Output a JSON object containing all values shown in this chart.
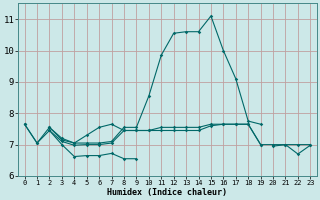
{
  "xlabel": "Humidex (Indice chaleur)",
  "bg_color": "#cce8e8",
  "grid_color": "#c0a0a0",
  "line_color": "#006868",
  "xmin": -0.5,
  "xmax": 23.5,
  "ymin": 6.0,
  "ymax": 11.5,
  "yticks": [
    6,
    7,
    8,
    9,
    10,
    11
  ],
  "xticks": [
    0,
    1,
    2,
    3,
    4,
    5,
    6,
    7,
    8,
    9,
    10,
    11,
    12,
    13,
    14,
    15,
    16,
    17,
    18,
    19,
    20,
    21,
    22,
    23
  ],
  "series": [
    [
      7.65,
      7.05,
      7.45,
      7.0,
      6.62,
      6.65,
      6.65,
      6.72,
      6.55,
      6.55,
      null,
      null,
      null,
      null,
      null,
      null,
      null,
      null,
      null,
      null,
      null,
      null,
      null,
      null
    ],
    [
      null,
      null,
      null,
      null,
      null,
      null,
      null,
      null,
      null,
      null,
      null,
      null,
      null,
      null,
      null,
      null,
      null,
      null,
      null,
      null,
      6.95,
      7.0,
      6.7,
      6.98
    ],
    [
      7.65,
      7.05,
      7.55,
      7.15,
      7.05,
      7.3,
      7.55,
      7.65,
      7.45,
      7.45,
      7.45,
      7.45,
      7.45,
      7.45,
      7.45,
      7.6,
      7.65,
      7.65,
      7.65,
      7.0,
      7.0,
      7.0,
      7.0,
      7.0
    ],
    [
      null,
      null,
      7.55,
      7.2,
      7.05,
      7.05,
      7.05,
      7.1,
      7.55,
      7.55,
      8.55,
      9.85,
      10.55,
      10.6,
      10.6,
      11.1,
      10.0,
      9.1,
      7.75,
      7.65,
      null,
      null,
      null,
      null
    ],
    [
      null,
      null,
      7.45,
      7.1,
      6.98,
      7.0,
      7.0,
      7.05,
      7.45,
      7.45,
      7.45,
      7.55,
      7.55,
      7.55,
      7.55,
      7.65,
      7.65,
      7.65,
      7.65,
      7.0,
      null,
      null,
      null,
      null
    ]
  ],
  "xlabel_fontsize": 6.0,
  "xtick_fontsize": 5.0,
  "ytick_fontsize": 6.5
}
